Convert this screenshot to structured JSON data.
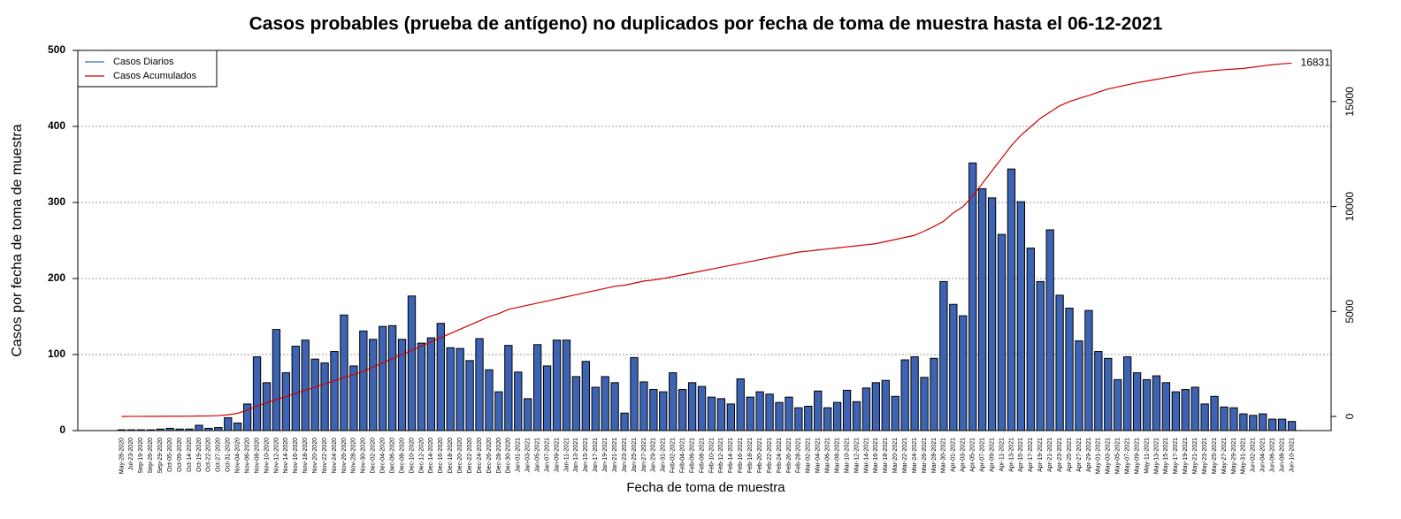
{
  "chart_data": {
    "type": "bar",
    "title": "Casos probables (prueba de antígeno) no duplicados por fecha de toma de muestra hasta el 06-12-2021",
    "xlabel": "Fecha de toma de muestra",
    "ylabel": "Casos por fecha de toma de muestra",
    "categories": [
      "May-28-2020",
      "Jul-23-2020",
      "Sep-19-2020",
      "Sep-26-2020",
      "Sep-29-2020",
      "Oct-05-2020",
      "Oct-09-2020",
      "Oct-14-2020",
      "Oct-19-2020",
      "Oct-22-2020",
      "Oct-27-2020",
      "Oct-31-2020",
      "Nov-04-2020",
      "Nov-06-2020",
      "Nov-08-2020",
      "Nov-10-2020",
      "Nov-12-2020",
      "Nov-14-2020",
      "Nov-16-2020",
      "Nov-18-2020",
      "Nov-20-2020",
      "Nov-22-2020",
      "Nov-24-2020",
      "Nov-26-2020",
      "Nov-28-2020",
      "Nov-30-2020",
      "Dec-02-2020",
      "Dec-04-2020",
      "Dec-06-2020",
      "Dec-08-2020",
      "Dec-10-2020",
      "Dec-12-2020",
      "Dec-14-2020",
      "Dec-16-2020",
      "Dec-18-2020",
      "Dec-20-2020",
      "Dec-22-2020",
      "Dec-24-2020",
      "Dec-26-2020",
      "Dec-28-2020",
      "Dec-30-2020",
      "Jan-01-2021",
      "Jan-03-2021",
      "Jan-05-2021",
      "Jan-07-2021",
      "Jan-09-2021",
      "Jan-11-2021",
      "Jan-13-2021",
      "Jan-15-2021",
      "Jan-17-2021",
      "Jan-19-2021",
      "Jan-21-2021",
      "Jan-23-2021",
      "Jan-25-2021",
      "Jan-27-2021",
      "Jan-29-2021",
      "Jan-31-2021",
      "Feb-02-2021",
      "Feb-04-2021",
      "Feb-06-2021",
      "Feb-08-2021",
      "Feb-10-2021",
      "Feb-12-2021",
      "Feb-14-2021",
      "Feb-16-2021",
      "Feb-18-2021",
      "Feb-20-2021",
      "Feb-22-2021",
      "Feb-24-2021",
      "Feb-26-2021",
      "Feb-28-2021",
      "Mar-02-2021",
      "Mar-04-2021",
      "Mar-06-2021",
      "Mar-08-2021",
      "Mar-10-2021",
      "Mar-12-2021",
      "Mar-14-2021",
      "Mar-16-2021",
      "Mar-18-2021",
      "Mar-20-2021",
      "Mar-22-2021",
      "Mar-24-2021",
      "Mar-26-2021",
      "Mar-28-2021",
      "Mar-30-2021",
      "Apr-01-2021",
      "Apr-03-2021",
      "Apr-05-2021",
      "Apr-07-2021",
      "Apr-09-2021",
      "Apr-11-2021",
      "Apr-13-2021",
      "Apr-15-2021",
      "Apr-17-2021",
      "Apr-19-2021",
      "Apr-21-2021",
      "Apr-23-2021",
      "Apr-25-2021",
      "Apr-27-2021",
      "Apr-29-2021",
      "May-01-2021",
      "May-03-2021",
      "May-05-2021",
      "May-07-2021",
      "May-09-2021",
      "May-11-2021",
      "May-13-2021",
      "May-15-2021",
      "May-17-2021",
      "May-19-2021",
      "May-21-2021",
      "May-23-2021",
      "May-25-2021",
      "May-27-2021",
      "May-29-2021",
      "May-31-2021",
      "Jun-02-2021",
      "Jun-04-2021",
      "Jun-06-2021",
      "Jun-08-2021",
      "Jun-10-2021"
    ],
    "series": [
      {
        "name": "Casos Diarios",
        "color": "#3d64b4",
        "values": [
          1,
          1,
          1,
          1,
          2,
          3,
          2,
          2,
          7,
          3,
          4,
          17,
          10,
          35,
          97,
          63,
          133,
          76,
          111,
          119,
          94,
          89,
          104,
          152,
          85,
          131,
          120,
          137,
          138,
          120,
          177,
          115,
          122,
          141,
          109,
          108,
          92,
          121,
          80,
          51,
          112,
          77,
          42,
          113,
          85,
          119,
          119,
          71,
          91,
          57,
          71,
          63,
          23,
          96,
          64,
          54,
          51,
          76,
          54,
          63,
          58,
          44,
          42,
          35,
          68,
          44,
          51,
          48,
          37,
          44,
          30,
          32,
          52,
          30,
          37,
          53,
          38,
          56,
          63,
          66,
          45,
          93,
          97,
          70,
          95,
          196,
          166,
          151,
          352,
          318,
          306,
          258,
          344,
          301,
          240,
          196,
          264,
          178,
          161,
          118,
          158,
          104,
          95,
          67,
          97,
          76,
          67,
          72,
          63,
          51,
          54,
          57,
          35,
          45,
          31,
          30,
          22,
          20,
          22,
          15,
          15,
          12
        ]
      },
      {
        "name": "Casos Acumulados",
        "color": "#cc0000",
        "axis": "y2",
        "values": [
          1,
          2,
          3,
          4,
          6,
          9,
          11,
          13,
          20,
          23,
          40,
          80,
          150,
          300,
          500,
          650,
          800,
          950,
          1100,
          1250,
          1400,
          1550,
          1700,
          1850,
          2000,
          2150,
          2350,
          2550,
          2750,
          2950,
          3150,
          3350,
          3550,
          3750,
          3950,
          4150,
          4350,
          4550,
          4750,
          4900,
          5100,
          5200,
          5300,
          5400,
          5500,
          5600,
          5700,
          5800,
          5900,
          6000,
          6100,
          6200,
          6250,
          6350,
          6450,
          6500,
          6570,
          6660,
          6750,
          6840,
          6930,
          7020,
          7110,
          7200,
          7290,
          7380,
          7470,
          7560,
          7650,
          7740,
          7830,
          7880,
          7930,
          7980,
          8030,
          8080,
          8130,
          8180,
          8230,
          8330,
          8430,
          8530,
          8630,
          8830,
          9050,
          9300,
          9700,
          10000,
          10500,
          11100,
          11700,
          12300,
          12900,
          13400,
          13800,
          14200,
          14500,
          14800,
          15000,
          15150,
          15290,
          15450,
          15600,
          15700,
          15800,
          15900,
          15980,
          16060,
          16140,
          16220,
          16300,
          16380,
          16430,
          16480,
          16520,
          16550,
          16580,
          16640,
          16700,
          16760,
          16800,
          16831
        ]
      }
    ],
    "ylim": [
      0,
      500
    ],
    "yticks": [
      0,
      100,
      200,
      300,
      400,
      500
    ],
    "y2lim": [
      -674,
      17439
    ],
    "y2ticks": [
      0,
      5000,
      10000,
      15000
    ],
    "grid": true,
    "legend": "top-left"
  }
}
